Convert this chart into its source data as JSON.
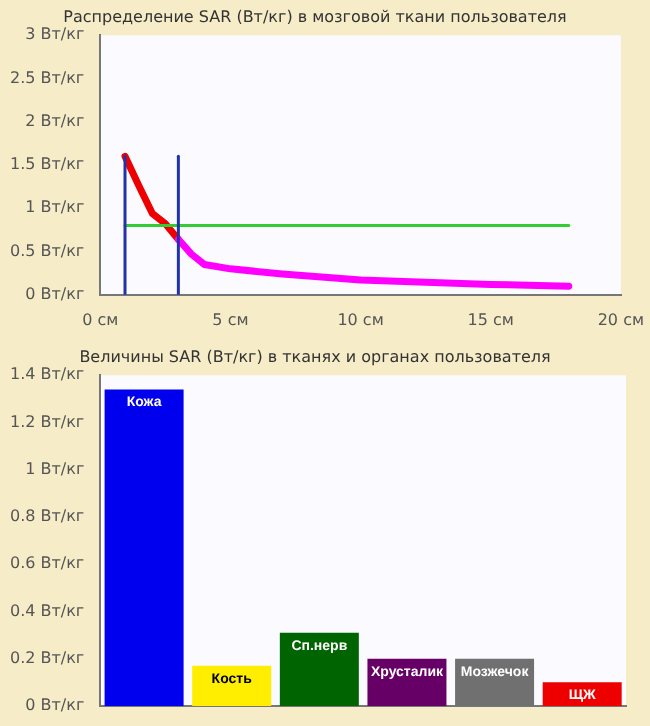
{
  "chart_data": [
    {
      "type": "line",
      "title": "Распределение SAR (Вт/кг) в мозговой ткани пользователя",
      "xlim": [
        0,
        20
      ],
      "ylim": [
        0,
        3
      ],
      "xticks": [
        {
          "value": 0,
          "label": "0 см"
        },
        {
          "value": 5,
          "label": "5 см"
        },
        {
          "value": 10,
          "label": "10 см"
        },
        {
          "value": 15,
          "label": "15 см"
        },
        {
          "value": 20,
          "label": "20 см"
        }
      ],
      "yticks": [
        {
          "value": 0,
          "label": "0 Вт/кг"
        },
        {
          "value": 0.5,
          "label": "0.5 Вт/кг"
        },
        {
          "value": 1,
          "label": "1 Вт/кг"
        },
        {
          "value": 1.5,
          "label": "1.5 Вт/кг"
        },
        {
          "value": 2,
          "label": "2 Вт/кг"
        },
        {
          "value": 2.5,
          "label": "2.5 Вт/кг"
        },
        {
          "value": 3,
          "label": "3 Вт/кг"
        }
      ],
      "grid": false,
      "legend": false,
      "marker": "none",
      "series": [
        {
          "color": "#2233aa",
          "x": [
            0.95,
            0.95
          ],
          "values": [
            0,
            1.6
          ]
        },
        {
          "color": "#2233aa",
          "x": [
            3,
            3
          ],
          "values": [
            0,
            1.6
          ]
        },
        {
          "color": "#33cc33",
          "x": [
            0.95,
            18
          ],
          "values": [
            0.8,
            0.8
          ]
        },
        {
          "color": "#ff00ff",
          "x": [
            3,
            3.5,
            4,
            5,
            7,
            10,
            15,
            18
          ],
          "values": [
            0.64,
            0.47,
            0.35,
            0.3,
            0.24,
            0.17,
            0.12,
            0.1
          ]
        },
        {
          "color": "#ee0000",
          "x": [
            0.95,
            1.5,
            2,
            2.5,
            3
          ],
          "values": [
            1.6,
            1.25,
            0.94,
            0.82,
            0.64
          ]
        }
      ]
    },
    {
      "type": "bar",
      "title": "Величины SAR (Вт/кг) в тканях и органах пользователя",
      "ylim": [
        0,
        1.4
      ],
      "yticks": [
        {
          "value": 0,
          "label": "0 Вт/кг"
        },
        {
          "value": 0.2,
          "label": "0.2 Вт/кг"
        },
        {
          "value": 0.4,
          "label": "0.4 Вт/кг"
        },
        {
          "value": 0.6,
          "label": "0.6 Вт/кг"
        },
        {
          "value": 0.8,
          "label": "0.8 Вт/кг"
        },
        {
          "value": 1,
          "label": "1 Вт/кг"
        },
        {
          "value": 1.2,
          "label": "1.2 Вт/кг"
        },
        {
          "value": 1.4,
          "label": "1.4 Вт/кг"
        }
      ],
      "grid": false,
      "legend": false,
      "tick_labels": "y",
      "categories": [
        "Кожа",
        "Кость",
        "Сп.нерв",
        "Хрусталик",
        "Мозжечок",
        "ЩЖ"
      ],
      "values": [
        1.34,
        0.17,
        0.31,
        0.2,
        0.2,
        0.1
      ],
      "colors": [
        "#0000ee",
        "#ffee00",
        "#006400",
        "#660066",
        "#707070",
        "#ee0000"
      ]
    }
  ]
}
